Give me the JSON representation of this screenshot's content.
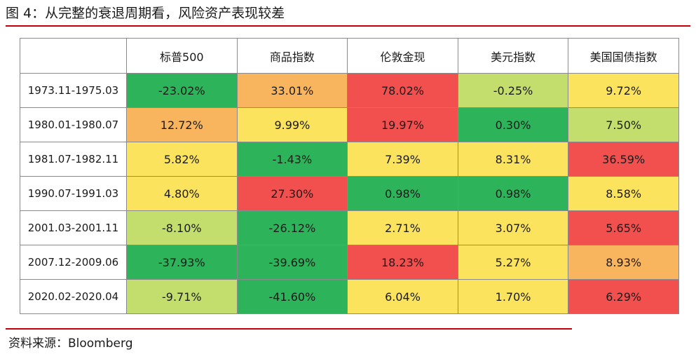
{
  "chart_data": {
    "type": "table",
    "title": "图 4：从完整的衰退周期看，风险资产表现较差",
    "columns": [
      "标普500",
      "商品指数",
      "伦敦金现",
      "美元指数",
      "美国国债指数"
    ],
    "rows": [
      {
        "period": "1973.11-1975.03",
        "values": [
          -23.02,
          33.01,
          78.02,
          -0.25,
          9.72
        ],
        "labels": [
          "-23.02%",
          "33.01%",
          "78.02%",
          "-0.25%",
          "9.72%"
        ],
        "colors": [
          "#2db35a",
          "#f8b55d",
          "#f24f4f",
          "#c3de6c",
          "#fbe35e"
        ]
      },
      {
        "period": "1980.01-1980.07",
        "values": [
          12.72,
          9.99,
          19.97,
          0.3,
          7.5
        ],
        "labels": [
          "12.72%",
          "9.99%",
          "19.97%",
          "0.30%",
          "7.50%"
        ],
        "colors": [
          "#f8b55d",
          "#fbe35e",
          "#f24f4f",
          "#2db35a",
          "#c3de6c"
        ]
      },
      {
        "period": "1981.07-1982.11",
        "values": [
          5.82,
          -1.43,
          7.39,
          8.31,
          36.59
        ],
        "labels": [
          "5.82%",
          "-1.43%",
          "7.39%",
          "8.31%",
          "36.59%"
        ],
        "colors": [
          "#fbe35e",
          "#2db35a",
          "#fbe35e",
          "#fbe35e",
          "#f24f4f"
        ]
      },
      {
        "period": "1990.07-1991.03",
        "values": [
          4.8,
          27.3,
          0.98,
          0.98,
          8.58
        ],
        "labels": [
          "4.80%",
          "27.30%",
          "0.98%",
          "0.98%",
          "8.58%"
        ],
        "colors": [
          "#fbe35e",
          "#f24f4f",
          "#2db35a",
          "#2db35a",
          "#fbe35e"
        ]
      },
      {
        "period": "2001.03-2001.11",
        "values": [
          -8.1,
          -26.12,
          2.71,
          3.07,
          5.65
        ],
        "labels": [
          "-8.10%",
          "-26.12%",
          "2.71%",
          "3.07%",
          "5.65%"
        ],
        "colors": [
          "#c3de6c",
          "#2db35a",
          "#fbe35e",
          "#fbe35e",
          "#f24f4f"
        ]
      },
      {
        "period": "2007.12-2009.06",
        "values": [
          -37.93,
          -39.69,
          18.23,
          5.27,
          8.93
        ],
        "labels": [
          "-37.93%",
          "-39.69%",
          "18.23%",
          "5.27%",
          "8.93%"
        ],
        "colors": [
          "#2db35a",
          "#2db35a",
          "#f24f4f",
          "#fbe35e",
          "#f8b55d"
        ]
      },
      {
        "period": "2020.02-2020.04",
        "values": [
          -9.71,
          -41.6,
          6.04,
          1.7,
          6.29
        ],
        "labels": [
          "-9.71%",
          "-41.60%",
          "6.04%",
          "1.70%",
          "6.29%"
        ],
        "colors": [
          "#c3de6c",
          "#2db35a",
          "#fbe35e",
          "#fbe35e",
          "#f24f4f"
        ]
      }
    ]
  },
  "source": "资料来源：Bloomberg"
}
